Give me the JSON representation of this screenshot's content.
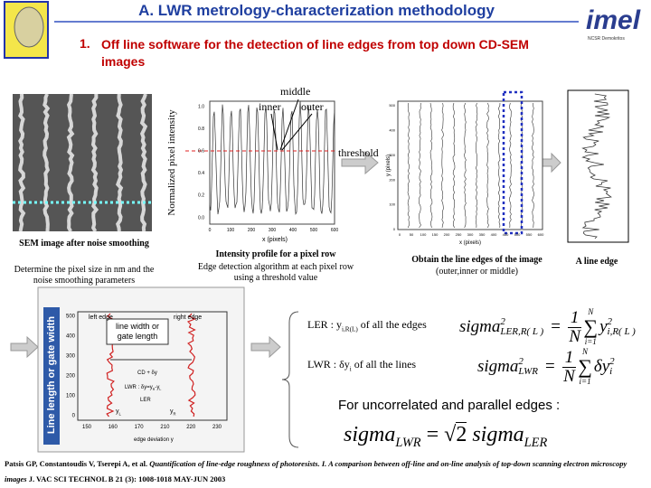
{
  "header": {
    "title": "A. LWR metrology-characterization methodology",
    "logo": "imel",
    "logo_sub": "NCSR Demokritos"
  },
  "subtitle": {
    "number": "1.",
    "text": "Off line  software for the detection of line edges from top down CD-SEM images"
  },
  "sem": {
    "caption_title": "SEM image after noise smoothing",
    "caption": "Determine the pixel size in nm and the noise smoothing parameters"
  },
  "intensity": {
    "y_label": "Normalized pixel intensity",
    "x_label": "x (pixels)",
    "yticks": [
      "0.0",
      "0.2",
      "0.4",
      "0.6",
      "0.8",
      "1.0"
    ],
    "xticks": [
      "0",
      "100",
      "200",
      "300",
      "400",
      "500",
      "600"
    ],
    "middle": "middle",
    "inner": "inner",
    "outer": "outer",
    "threshold": "threshold",
    "caption_title": "Intensity profile for a pixel row",
    "caption": "Edge detection algorithm at each pixel row using a threshold value"
  },
  "edges": {
    "y_label": "y (pixels)",
    "x_label": "x (pixels)",
    "yticks": [
      "0",
      "100",
      "200",
      "300",
      "400",
      "500"
    ],
    "xticks": [
      "0",
      "50",
      "100",
      "150",
      "200",
      "250",
      "300",
      "350",
      "400",
      "450",
      "500",
      "550",
      "600"
    ],
    "caption_title": "Obtain the line edges of the image",
    "caption": "(outer,inner or middle)"
  },
  "line_edge": {
    "caption": "A line edge"
  },
  "width_plot": {
    "y_label": "Line length or gate width",
    "left_edge": "left edge",
    "right_edge": "right edge",
    "width_note": "line width or gate length",
    "cd": "CD + δy",
    "lwr": "LWR : δy=y",
    "lwr_r": "R",
    "lwr_minus": "-y",
    "lwr_l": "L",
    "ler": "LER",
    "yl": "y",
    "yl_sub": "L",
    "yr": "y",
    "yr_sub": "R",
    "x_label": "edge deviation y",
    "yticks": [
      "0",
      "100",
      "200",
      "300",
      "400",
      "500"
    ],
    "xticks": [
      "150",
      "160",
      "170",
      "210",
      "220",
      "230"
    ]
  },
  "equations": {
    "ler": {
      "label": "LER : y",
      "sub": "i,R(L)",
      "rest": " of all the edges",
      "lhs": "sigma",
      "lhs_sup": "2",
      "lhs_sub": "LER,R( L )",
      "eq": "=",
      "num": "1",
      "den": "N",
      "sum": "∑",
      "top": "N",
      "bottom": "i=1",
      "term": "y",
      "term_sup": "2",
      "term_sub": "i,R( L )"
    },
    "lwr": {
      "label": "LWR : δy",
      "sub": "i",
      "rest": "  of all the lines",
      "lhs": "sigma",
      "lhs_sup": "2",
      "lhs_sub": "LWR",
      "eq": "=",
      "num": "1",
      "den": "N",
      "sum": "∑",
      "top": "N",
      "bottom": "i=1",
      "term": "δy",
      "term_sup": "2",
      "term_sub": "i"
    },
    "note": "For uncorrelated and parallel edges :",
    "final": {
      "lhs": "sigma",
      "lhs_sub": "LWR",
      "eq": "=",
      "root": "√",
      "root_arg": "2",
      "rhs": " sigma",
      "rhs_sub": "LER"
    }
  },
  "citation": {
    "authors": "Patsis GP, Constantoudis V, Tserepi A, et al. ",
    "title": "Quantification of line-edge roughness of photoresists. I. A comparison between off-line and on-line analysis of top-down scanning electron microscopy images",
    "journal": " J. VAC SCI TECHNOL B 21 (3): 1008-1018 MAY-JUN 2003"
  }
}
